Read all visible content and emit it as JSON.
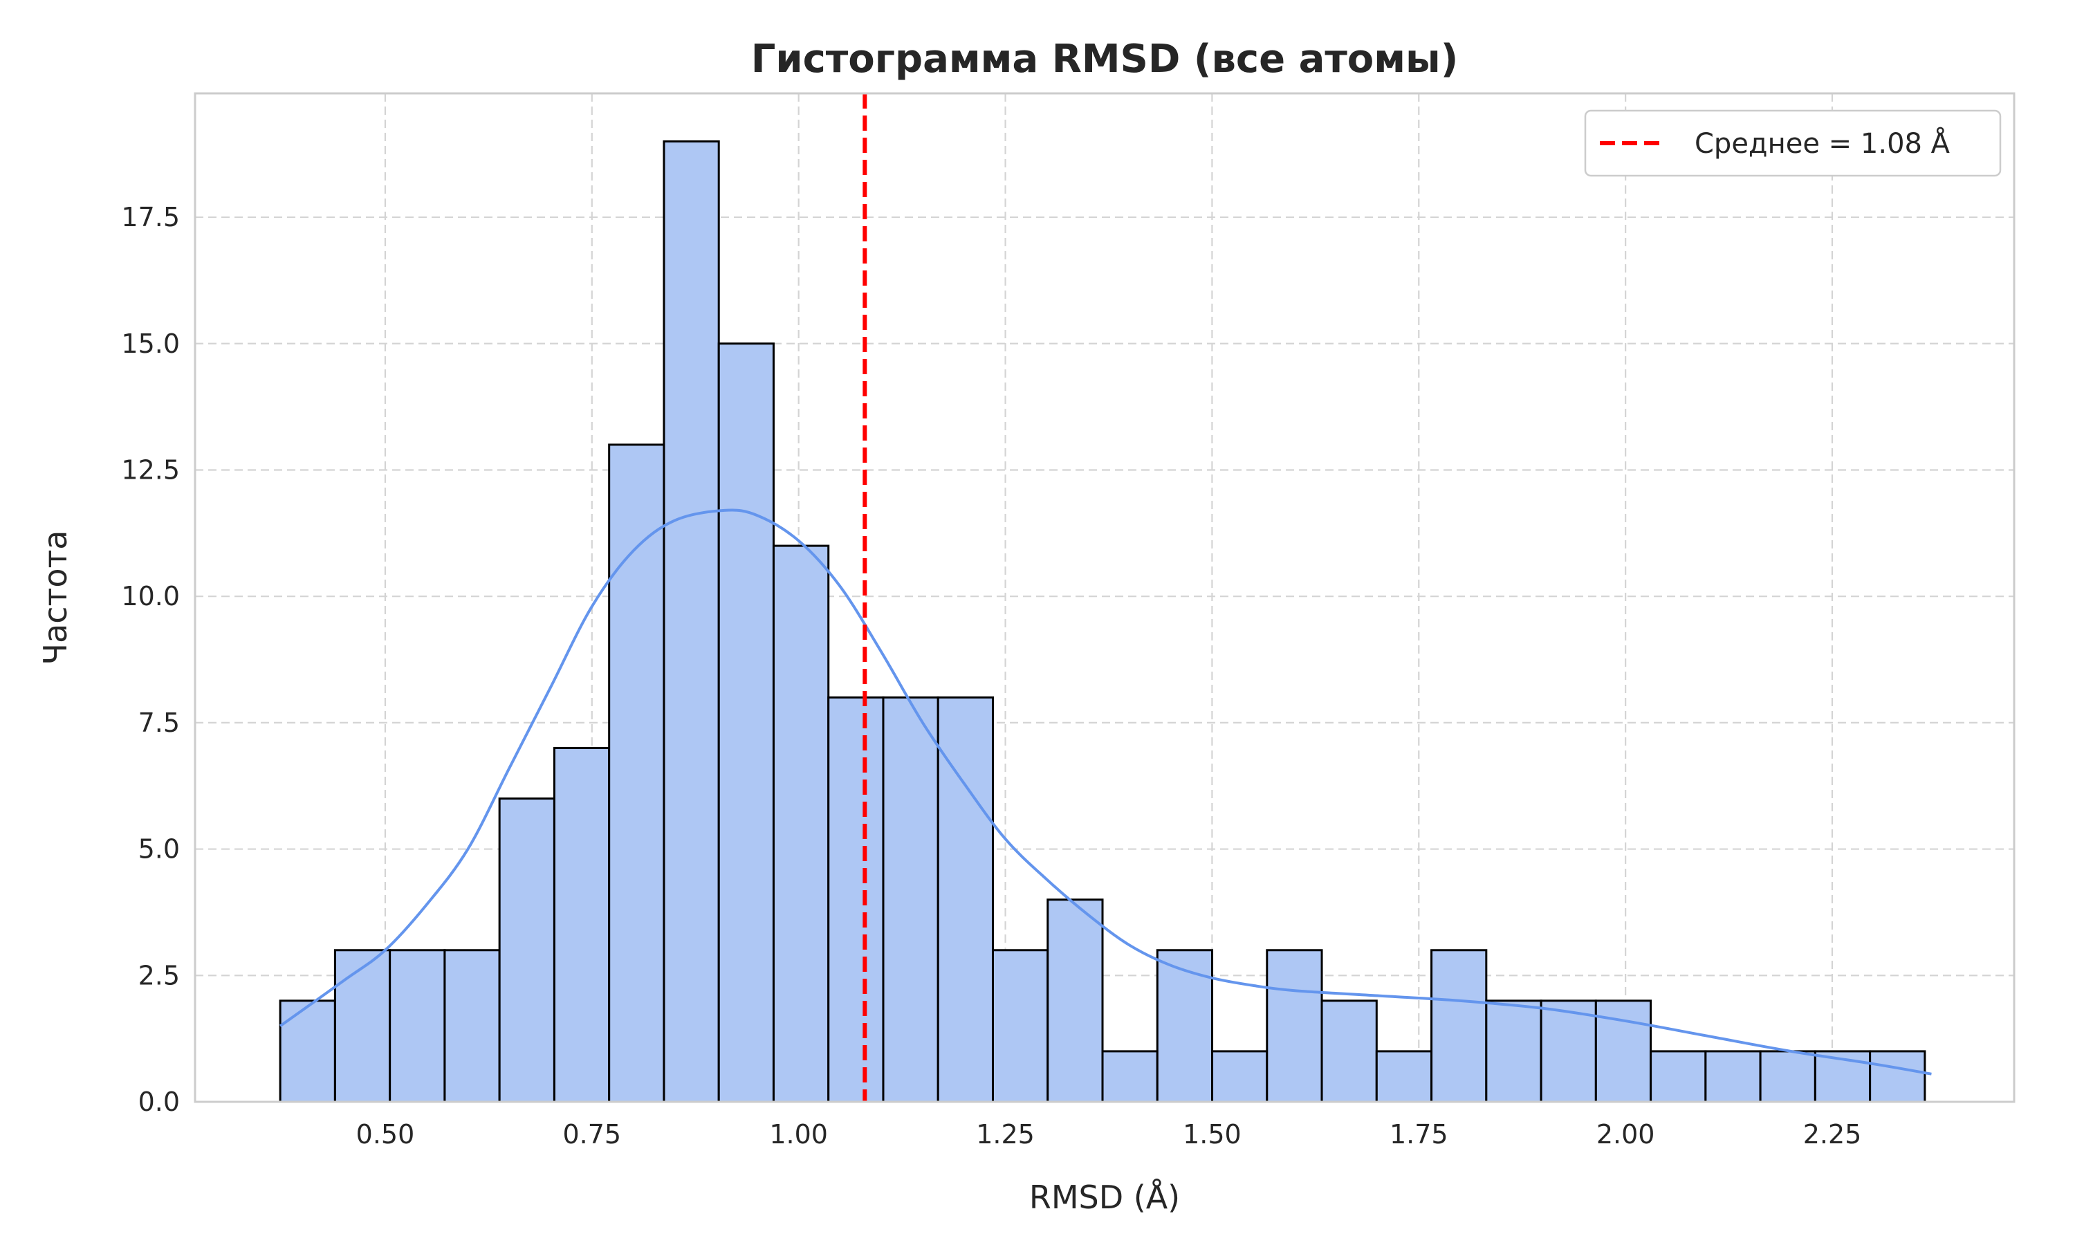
{
  "chart_data": {
    "type": "bar",
    "title": "Гистограмма RMSD (все атомы)",
    "xlabel": "RMSD (Å)",
    "ylabel": "Частота",
    "xlim": [
      0.27,
      2.47
    ],
    "ylim": [
      0,
      19.95
    ],
    "x_ticks": [
      0.5,
      0.75,
      1.0,
      1.25,
      1.5,
      1.75,
      2.0,
      2.25
    ],
    "x_tick_labels": [
      "0.50",
      "0.75",
      "1.00",
      "1.25",
      "1.50",
      "1.75",
      "2.00",
      "2.25"
    ],
    "y_ticks": [
      0,
      2.5,
      5,
      7.5,
      10,
      12.5,
      15,
      17.5
    ],
    "y_tick_labels": [
      "0.0",
      "2.5",
      "5.0",
      "7.5",
      "10.0",
      "12.5",
      "15.0",
      "17.5"
    ],
    "grid": true,
    "bins": {
      "start": 0.373,
      "width": 0.0663,
      "counts": [
        2,
        3,
        3,
        3,
        6,
        7,
        13,
        19,
        15,
        11,
        8,
        8,
        8,
        3,
        4,
        1,
        3,
        1,
        3,
        2,
        1,
        3,
        2,
        2,
        2,
        1,
        1,
        1,
        1,
        1
      ]
    },
    "kde": {
      "x": [
        0.373,
        0.45,
        0.5,
        0.55,
        0.6,
        0.65,
        0.7,
        0.75,
        0.8,
        0.85,
        0.91,
        0.95,
        1.0,
        1.05,
        1.1,
        1.15,
        1.2,
        1.25,
        1.3,
        1.35,
        1.4,
        1.45,
        1.5,
        1.55,
        1.6,
        1.7,
        1.8,
        1.9,
        2.0,
        2.1,
        2.2,
        2.3,
        2.37
      ],
      "y": [
        1.5,
        2.4,
        3.0,
        3.9,
        5.0,
        6.6,
        8.2,
        9.8,
        10.9,
        11.5,
        11.7,
        11.6,
        11.1,
        10.2,
        8.9,
        7.5,
        6.3,
        5.2,
        4.4,
        3.7,
        3.1,
        2.7,
        2.45,
        2.3,
        2.2,
        2.1,
        2.0,
        1.85,
        1.6,
        1.3,
        1.0,
        0.75,
        0.55
      ]
    },
    "mean_line": {
      "x": 1.08,
      "label": "Среднее = 1.08 Å",
      "color": "#ff0000"
    },
    "bar_color": "#aec7f4",
    "kde_color": "#6495ed",
    "legend_position": "top-right"
  }
}
